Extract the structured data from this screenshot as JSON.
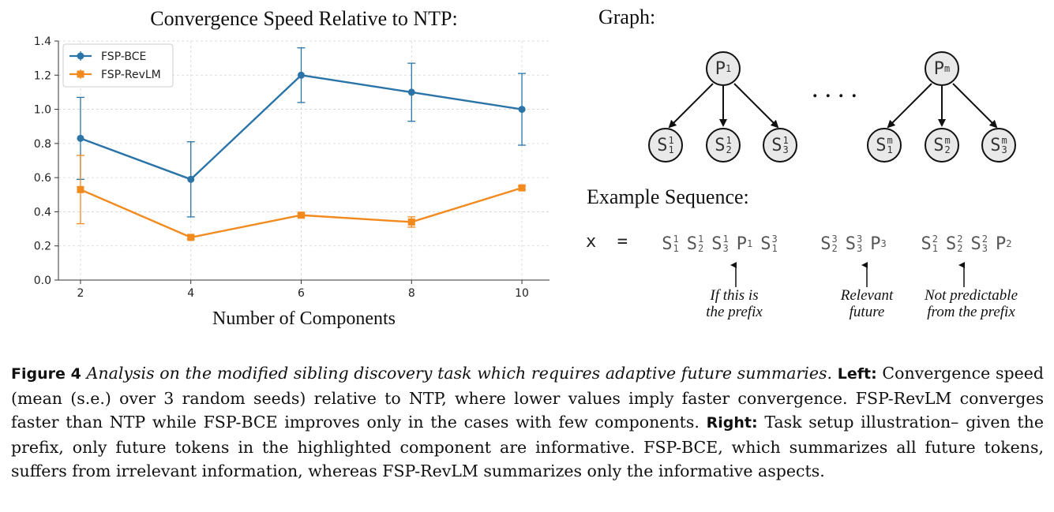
{
  "chart_data": {
    "type": "line",
    "title": "Convergence Speed Relative to NTP:",
    "xlabel": "Number of Components",
    "ylabel": "",
    "x": [
      2,
      4,
      6,
      8,
      10
    ],
    "x_ticks": [
      "2",
      "4",
      "6",
      "8",
      "10"
    ],
    "ylim": [
      0.0,
      1.4
    ],
    "y_ticks": [
      "0.0",
      "0.2",
      "0.4",
      "0.6",
      "0.8",
      "1.0",
      "1.2",
      "1.4"
    ],
    "grid": true,
    "legend_position": "top-left",
    "series": [
      {
        "name": "FSP-BCE",
        "color": "#2a74a8",
        "marker": "circle",
        "values": [
          0.83,
          0.59,
          1.2,
          1.1,
          1.0
        ],
        "errors": [
          0.24,
          0.22,
          0.16,
          0.17,
          0.21
        ]
      },
      {
        "name": "FSP-RevLM",
        "color": "#f28a1e",
        "marker": "square",
        "values": [
          0.53,
          0.25,
          0.38,
          0.34,
          0.54
        ],
        "errors": [
          0.2,
          0.01,
          0.01,
          0.03,
          0.01
        ]
      }
    ]
  },
  "graph": {
    "title": "Graph:",
    "parents": [
      {
        "base": "P",
        "sup": "1",
        "children": [
          {
            "base": "S",
            "sup": "1",
            "sub": "1"
          },
          {
            "base": "S",
            "sup": "1",
            "sub": "2"
          },
          {
            "base": "S",
            "sup": "1",
            "sub": "3"
          }
        ]
      },
      {
        "base": "P",
        "sup": "m",
        "children": [
          {
            "base": "S",
            "sup": "m",
            "sub": "1"
          },
          {
            "base": "S",
            "sup": "m",
            "sub": "2"
          },
          {
            "base": "S",
            "sup": "m",
            "sub": "3"
          }
        ]
      }
    ],
    "ellipsis": "...."
  },
  "sequence": {
    "title": "Example Sequence:",
    "lhs": "x  =",
    "segments": [
      {
        "color": "#dcdcdc",
        "tokens": [
          {
            "base": "S",
            "sup": "1",
            "sub": "1"
          },
          {
            "base": "S",
            "sup": "1",
            "sub": "2"
          },
          {
            "base": "S",
            "sup": "1",
            "sub": "3"
          },
          {
            "base": "P",
            "sup": "1",
            "sub": ""
          },
          {
            "base": "S",
            "sup": "3",
            "sub": "1"
          }
        ]
      },
      {
        "color": "#fce7b0",
        "tokens": [
          {
            "base": "S",
            "sup": "3",
            "sub": "2"
          },
          {
            "base": "S",
            "sup": "3",
            "sub": "3"
          },
          {
            "base": "P",
            "sup": "3",
            "sub": ""
          }
        ]
      },
      {
        "color": "#f4bfdb",
        "tokens": [
          {
            "base": "S",
            "sup": "2",
            "sub": "1"
          },
          {
            "base": "S",
            "sup": "2",
            "sub": "2"
          },
          {
            "base": "S",
            "sup": "2",
            "sub": "3"
          },
          {
            "base": "P",
            "sup": "2",
            "sub": ""
          }
        ]
      }
    ],
    "annotations": [
      {
        "line1": "If this is",
        "line2": "the prefix"
      },
      {
        "line1": "Relevant",
        "line2": "future"
      },
      {
        "line1": "Not predictable",
        "line2": "from the prefix"
      }
    ]
  },
  "caption": {
    "figure_label": "Figure 4",
    "italic_text": "Analysis on the modified sibling discovery task which requires adaptive future summaries.",
    "left_label": "Left:",
    "left_text": "Convergence speed (mean (s.e.) over 3 random seeds) relative to NTP, where lower values imply faster convergence. FSP-RevLM converges faster than NTP while FSP-BCE improves only in the cases with few components.",
    "right_label": "Right:",
    "right_text": "Task setup illustration– given the prefix, only future tokens in the highlighted component are informative. FSP-BCE, which summarizes all future tokens, suffers from irrelevant information, whereas FSP-RevLM summarizes only the informative aspects."
  }
}
